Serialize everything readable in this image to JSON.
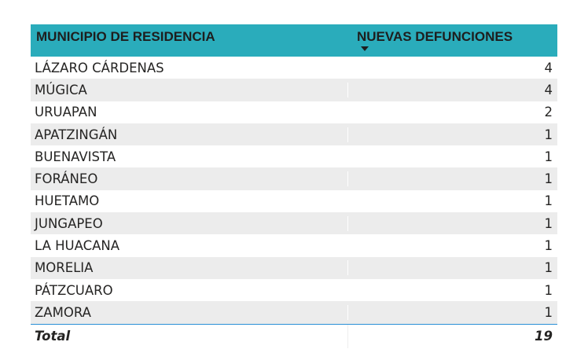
{
  "table": {
    "headers": {
      "municipio": "MUNICIPIO DE RESIDENCIA",
      "defunciones": "NUEVAS DEFUNCIONES"
    },
    "sort": {
      "column": "defunciones",
      "direction": "descending"
    },
    "rows": [
      {
        "municipio": "LÁZARO CÁRDENAS",
        "defunciones": "4"
      },
      {
        "municipio": "MÚGICA",
        "defunciones": "4"
      },
      {
        "municipio": "URUAPAN",
        "defunciones": "2"
      },
      {
        "municipio": "APATZINGÁN",
        "defunciones": "1"
      },
      {
        "municipio": "BUENAVISTA",
        "defunciones": "1"
      },
      {
        "municipio": "FORÁNEO",
        "defunciones": "1"
      },
      {
        "municipio": "HUETAMO",
        "defunciones": "1"
      },
      {
        "municipio": "JUNGAPEO",
        "defunciones": "1"
      },
      {
        "municipio": "LA HUACANA",
        "defunciones": "1"
      },
      {
        "municipio": "MORELIA",
        "defunciones": "1"
      },
      {
        "municipio": "PÁTZCUARO",
        "defunciones": "1"
      },
      {
        "municipio": "ZAMORA",
        "defunciones": "1"
      }
    ],
    "total": {
      "label": "Total",
      "value": "19"
    }
  },
  "colors": {
    "header_background": "#2aacbb",
    "alternate_row": "#ececec",
    "total_border": "#2a8fd6"
  }
}
